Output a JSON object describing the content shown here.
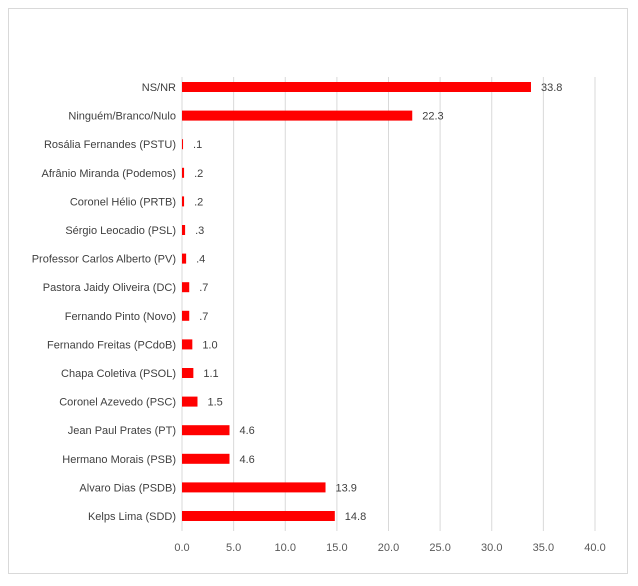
{
  "chart_data": {
    "type": "bar",
    "orientation": "horizontal",
    "title": "",
    "xlabel": "",
    "ylabel": "",
    "categories": [
      "NS/NR",
      "Ninguém/Branco/Nulo",
      "Rosália Fernandes (PSTU)",
      "Afrânio Miranda (Podemos)",
      "Coronel Hélio (PRTB)",
      "Sérgio Leocadio (PSL)",
      "Professor Carlos Alberto (PV)",
      "Pastora Jaidy Oliveira (DC)",
      "Fernando Pinto (Novo)",
      "Fernando Freitas (PCdoB)",
      "Chapa Coletiva (PSOL)",
      "Coronel Azevedo (PSC)",
      "Jean Paul Prates (PT)",
      "Hermano Morais (PSB)",
      "Alvaro Dias (PSDB)",
      "Kelps Lima (SDD)"
    ],
    "values": [
      33.8,
      22.3,
      0.1,
      0.2,
      0.2,
      0.3,
      0.4,
      0.7,
      0.7,
      1.0,
      1.1,
      1.5,
      4.6,
      4.6,
      13.9,
      14.8
    ],
    "value_labels": [
      "33.8",
      "22.3",
      ".1",
      ".2",
      ".2",
      ".3",
      ".4",
      ".7",
      ".7",
      "1.0",
      "1.1",
      "1.5",
      "4.6",
      "4.6",
      "13.9",
      "14.8"
    ],
    "xlim": [
      0,
      40
    ],
    "x_ticks": [
      "0.0",
      "5.0",
      "10.0",
      "15.0",
      "20.0",
      "25.0",
      "30.0",
      "35.0",
      "40.0"
    ],
    "grid": "vertical",
    "legend": "none",
    "bar_color": "#ff0000"
  }
}
